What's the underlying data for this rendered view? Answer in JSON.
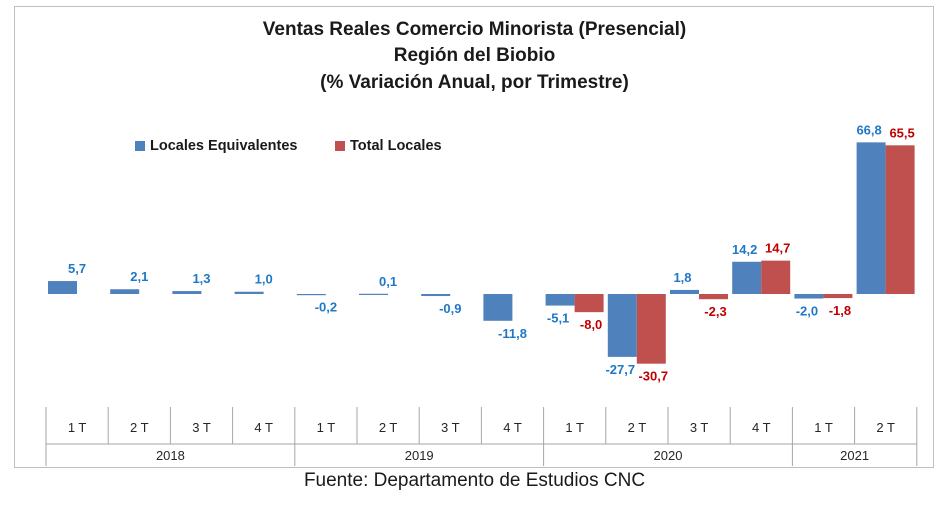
{
  "title_lines": [
    "Ventas Reales Comercio Minorista (Presencial)",
    "Región del Biobio",
    "(% Variación Anual, por Trimestre)"
  ],
  "source": "Fuente: Departamento de Estudios CNC",
  "colors": {
    "series_a": "#4f81bd",
    "series_b": "#c0504d",
    "label_a": "#1f78c8",
    "label_b": "#c00000"
  },
  "chart_data": {
    "type": "bar",
    "title": "Ventas Reales Comercio Minorista (Presencial) Región del Biobio (% Variación Anual, por Trimestre)",
    "categories": [
      "1 T",
      "2 T",
      "3 T",
      "4 T",
      "1 T",
      "2 T",
      "3 T",
      "4 T",
      "1 T",
      "2 T",
      "3 T",
      "4 T",
      "1 T",
      "2 T"
    ],
    "groups": [
      {
        "label": "2018",
        "count": 4
      },
      {
        "label": "2019",
        "count": 4
      },
      {
        "label": "2020",
        "count": 4
      },
      {
        "label": "2021",
        "count": 2
      }
    ],
    "series": [
      {
        "name": "Locales Equivalentes",
        "values": [
          5.7,
          2.1,
          1.3,
          1.0,
          -0.2,
          0.1,
          -0.9,
          -11.8,
          -5.1,
          -27.7,
          1.8,
          14.2,
          -2.0,
          66.8
        ],
        "labels": [
          "5,7",
          "2,1",
          "1,3",
          "1,0",
          "-0,2",
          "0,1",
          "-0,9",
          "-11,8",
          "-5,1",
          "-27,7",
          "1,8",
          "14,2",
          "-2,0",
          "66,8"
        ]
      },
      {
        "name": "Total Locales",
        "values": [
          null,
          null,
          null,
          null,
          null,
          null,
          null,
          null,
          -8.0,
          -30.7,
          -2.3,
          14.7,
          -1.8,
          65.5
        ],
        "labels": [
          "",
          "",
          "",
          "",
          "",
          "",
          "",
          "",
          "-8,0",
          "-30,7",
          "-2,3",
          "14,7",
          "-1,8",
          "65,5"
        ]
      }
    ],
    "legend_position": "top-left",
    "grid": false
  }
}
